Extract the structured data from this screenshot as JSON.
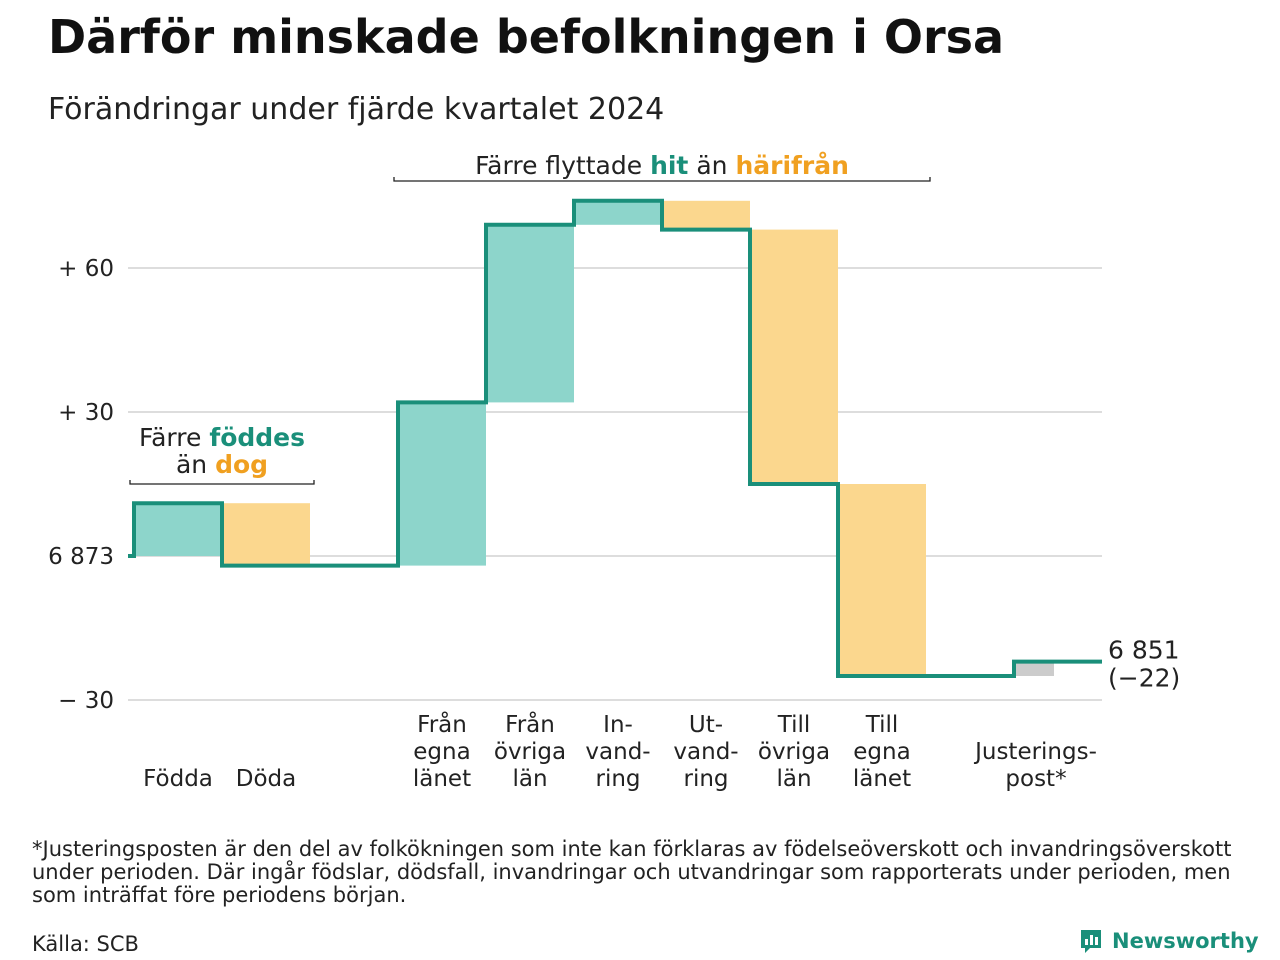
{
  "title": "Därför minskade befolkningen i Orsa",
  "subtitle": "Förändringar under fjärde kvartalet 2024",
  "footnote": "*Justeringsposten är den del av folkökningen som inte kan förklaras av födelseöverskott och invandringsöverskott under perioden. Där ingår födslar, dödsfall, invandringar och utvandringar som rapporterats under perioden, men som inträffat före periodens början.",
  "source": "Källa: SCB",
  "logo": {
    "text": "Newsworthy",
    "icon": "newsworthy-logo-icon"
  },
  "colors": {
    "increase": "#8dd5cb",
    "decrease": "#fbd78e",
    "adjustment": "#cccccc",
    "line": "#1a8f7a",
    "teal_text": "#1a8f7a",
    "orange_text": "#f0a020",
    "grid": "#dddddd"
  },
  "chart_data": {
    "type": "waterfall",
    "start_value": 6873,
    "start_label": "6 873",
    "end_value": 6851,
    "end_label": "6 851",
    "end_change_label": "(−22)",
    "y_ticks": [
      {
        "value": 60,
        "label": "+ 60"
      },
      {
        "value": 30,
        "label": "+ 30"
      },
      {
        "value": 0,
        "label": "6 873"
      },
      {
        "value": -30,
        "label": "− 30"
      }
    ],
    "ylim": [
      -36,
      76
    ],
    "steps": [
      {
        "label": [
          "Födda"
        ],
        "change": 11,
        "kind": "increase"
      },
      {
        "label": [
          "Döda"
        ],
        "change": -13,
        "kind": "decrease"
      },
      {
        "label": [],
        "change": 0,
        "kind": "gap"
      },
      {
        "label": [
          "Från",
          "egna",
          "länet"
        ],
        "change": 34,
        "kind": "increase"
      },
      {
        "label": [
          "Från",
          "övriga",
          "län"
        ],
        "change": 37,
        "kind": "increase"
      },
      {
        "label": [
          "In-",
          "vand-",
          "ring"
        ],
        "change": 5,
        "kind": "increase"
      },
      {
        "label": [
          "Ut-",
          "vand-",
          "ring"
        ],
        "change": -6,
        "kind": "decrease"
      },
      {
        "label": [
          "Till",
          "övriga",
          "län"
        ],
        "change": -53,
        "kind": "decrease"
      },
      {
        "label": [
          "Till",
          "egna",
          "länet"
        ],
        "change": -40,
        "kind": "decrease"
      },
      {
        "label": [],
        "change": 0,
        "kind": "gap"
      },
      {
        "label": [
          "Justerings-",
          "post*"
        ],
        "change": 3,
        "kind": "adjustment"
      }
    ],
    "annotations": [
      {
        "lines": [
          [
            {
              "text": "Färre ",
              "style": "normal"
            },
            {
              "text": "föddes",
              "style": "teal"
            }
          ],
          [
            {
              "text": "än ",
              "style": "normal"
            },
            {
              "text": "dog",
              "style": "orange"
            }
          ]
        ],
        "spans_steps": [
          0,
          1
        ]
      },
      {
        "lines": [
          [
            {
              "text": "Färre flyttade ",
              "style": "normal"
            },
            {
              "text": "hit",
              "style": "teal"
            },
            {
              "text": " än ",
              "style": "normal"
            },
            {
              "text": "härifrån",
              "style": "orange"
            }
          ]
        ],
        "spans_steps": [
          3,
          8
        ]
      }
    ]
  }
}
